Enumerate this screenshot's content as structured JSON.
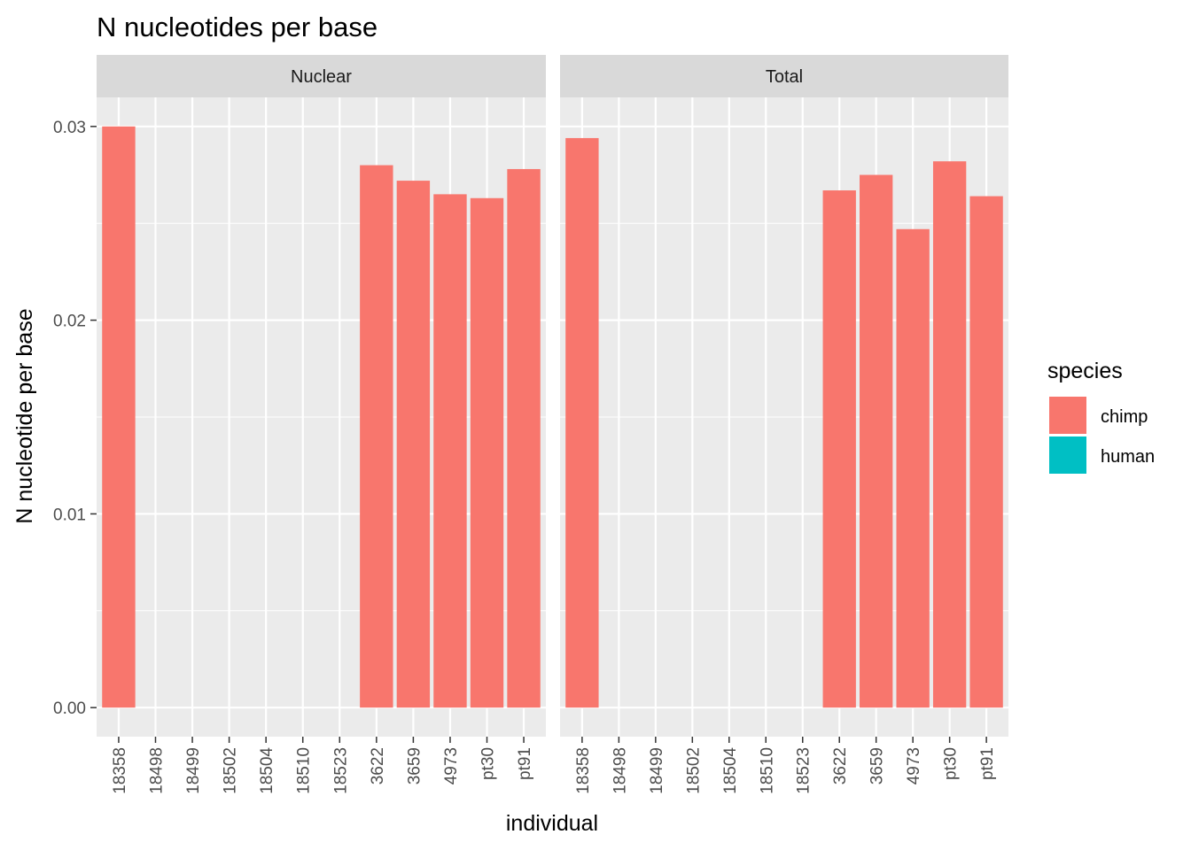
{
  "chart_data": {
    "type": "bar",
    "title": "N nucleotides per base",
    "xlabel": "individual",
    "ylabel": "N nucleotide per base",
    "ylim": [
      -0.0015,
      0.0315
    ],
    "yticks": [
      0.0,
      0.01,
      0.02,
      0.03
    ],
    "ytick_labels": [
      "0.00",
      "0.01",
      "0.02",
      "0.03"
    ],
    "categories": [
      "18358",
      "18498",
      "18499",
      "18502",
      "18504",
      "18510",
      "18523",
      "3622",
      "3659",
      "4973",
      "pt30",
      "pt91"
    ],
    "grid": true,
    "legend": {
      "title": "species",
      "position": "right",
      "items": [
        {
          "label": "chimp",
          "color": "#F8766D"
        },
        {
          "label": "human",
          "color": "#00BFC4"
        }
      ]
    },
    "panels": [
      {
        "name": "Nuclear",
        "values": [
          0.03,
          null,
          null,
          null,
          null,
          null,
          null,
          0.028,
          0.0272,
          0.0265,
          0.0263,
          0.0278
        ],
        "species": [
          "chimp",
          "human",
          "human",
          "human",
          "human",
          "human",
          "human",
          "chimp",
          "chimp",
          "chimp",
          "chimp",
          "chimp"
        ]
      },
      {
        "name": "Total",
        "values": [
          0.0294,
          null,
          null,
          null,
          null,
          null,
          null,
          0.0267,
          0.0275,
          0.0247,
          0.0282,
          0.0264
        ],
        "species": [
          "chimp",
          "human",
          "human",
          "human",
          "human",
          "human",
          "human",
          "chimp",
          "chimp",
          "chimp",
          "chimp",
          "chimp"
        ]
      }
    ]
  }
}
